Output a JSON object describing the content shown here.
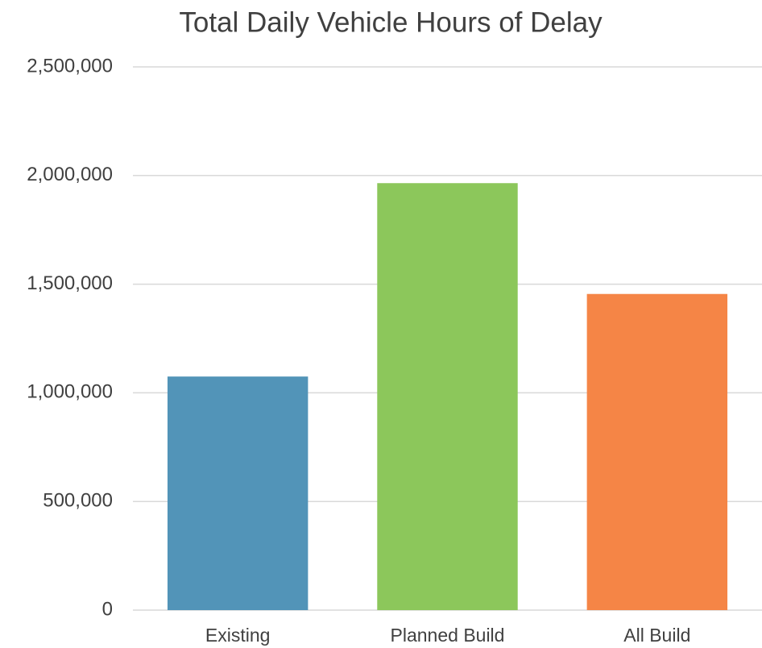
{
  "chart_data": {
    "type": "bar",
    "title": "Total Daily Vehicle Hours of Delay",
    "categories": [
      "Existing",
      "Planned Build",
      "All Build"
    ],
    "values": [
      1075000,
      1965000,
      1455000
    ],
    "colors": [
      "#5294b8",
      "#8cc75b",
      "#f58546"
    ],
    "ylim": [
      0,
      2500000
    ],
    "yticks": [
      0,
      {
        "value": 500000,
        "label": "500,000"
      },
      {
        "value": 1000000,
        "label": "1,000,000"
      },
      {
        "value": 1500000,
        "label": "1,500,000"
      },
      {
        "value": 2000000,
        "label": "2,000,000"
      },
      {
        "value": 2500000,
        "label": "2,500,000"
      }
    ],
    "grid": true
  }
}
